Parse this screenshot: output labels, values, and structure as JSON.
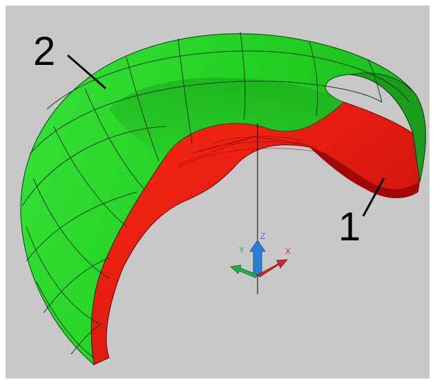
{
  "callouts": [
    {
      "label": "2"
    },
    {
      "label": "1"
    }
  ],
  "ucs": {
    "x_label": "X",
    "y_label": "Y",
    "z_label": "Z",
    "colors": {
      "x": "#d62a2a",
      "y": "#21b24a",
      "z": "#2a7fd4"
    }
  },
  "colors": {
    "viewport_background": "#c8c8c8",
    "surface_outer": "#22dd22",
    "surface_inner": "#ee1111",
    "wireframe": "#0b3d0b"
  }
}
